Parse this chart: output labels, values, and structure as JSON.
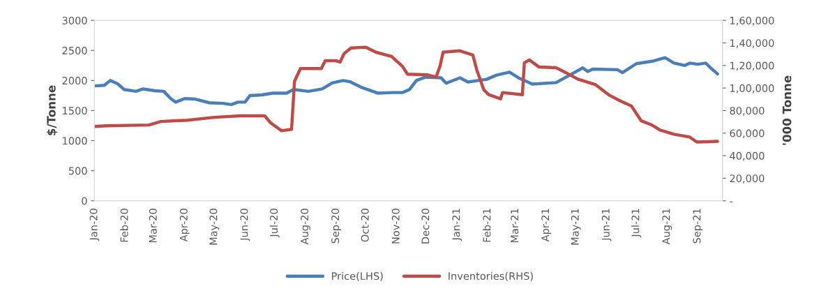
{
  "chart_data": {
    "type": "line",
    "ylabel": "$/Tonne",
    "y2label": "'000 Tonne",
    "legend": "bottom",
    "grid": false,
    "line_style": "solid",
    "marker": "none",
    "xlim": [
      "2020-01-01",
      "2021-09-26"
    ],
    "xticks": [
      {
        "value": "2020-01-01",
        "label": "Jan-20"
      },
      {
        "value": "2020-02-01",
        "label": "Feb-20"
      },
      {
        "value": "2020-03-01",
        "label": "Mar-20"
      },
      {
        "value": "2020-04-01",
        "label": "Apr-20"
      },
      {
        "value": "2020-05-01",
        "label": "May-20"
      },
      {
        "value": "2020-06-01",
        "label": "Jun-20"
      },
      {
        "value": "2020-07-01",
        "label": "Jul-20"
      },
      {
        "value": "2020-08-01",
        "label": "Aug-20"
      },
      {
        "value": "2020-09-01",
        "label": "Sep-20"
      },
      {
        "value": "2020-10-01",
        "label": "Oct-20"
      },
      {
        "value": "2020-11-01",
        "label": "Nov-20"
      },
      {
        "value": "2020-12-01",
        "label": "Dec-20"
      },
      {
        "value": "2021-01-01",
        "label": "Jan-21"
      },
      {
        "value": "2021-02-01",
        "label": "Feb-21"
      },
      {
        "value": "2021-03-01",
        "label": "Mar-21"
      },
      {
        "value": "2021-04-01",
        "label": "Apr-21"
      },
      {
        "value": "2021-05-01",
        "label": "May-21"
      },
      {
        "value": "2021-06-01",
        "label": "Jun-21"
      },
      {
        "value": "2021-07-01",
        "label": "Jul-21"
      },
      {
        "value": "2021-08-01",
        "label": "Aug-21"
      },
      {
        "value": "2021-09-01",
        "label": "Sep-21"
      }
    ],
    "ylim": [
      0,
      3000
    ],
    "yticks": [
      0,
      500,
      1000,
      1500,
      2000,
      2500,
      3000
    ],
    "y2lim": [
      0,
      160000
    ],
    "y2ticks": [
      {
        "value": 0,
        "label": "-"
      },
      {
        "value": 20000,
        "label": "20,000"
      },
      {
        "value": 40000,
        "label": "40,000"
      },
      {
        "value": 60000,
        "label": "60,000"
      },
      {
        "value": 80000,
        "label": "80,000"
      },
      {
        "value": 100000,
        "label": "1,00,000"
      },
      {
        "value": 120000,
        "label": "1,20,000"
      },
      {
        "value": 140000,
        "label": "1,40,000"
      },
      {
        "value": 160000,
        "label": "1,60,000"
      }
    ],
    "series": [
      {
        "name": "Price(LHS)",
        "color": "#4a7ebb",
        "x": [
          "2020-01-01",
          "2020-01-11",
          "2020-01-17",
          "2020-01-24",
          "2020-01-31",
          "2020-02-12",
          "2020-02-19",
          "2020-03-02",
          "2020-03-11",
          "2020-03-18",
          "2020-03-23",
          "2020-04-01",
          "2020-04-12",
          "2020-04-26",
          "2020-05-10",
          "2020-05-18",
          "2020-05-25",
          "2020-06-01",
          "2020-06-06",
          "2020-06-18",
          "2020-06-29",
          "2020-07-13",
          "2020-07-20",
          "2020-08-04",
          "2020-08-18",
          "2020-08-28",
          "2020-09-08",
          "2020-09-15",
          "2020-09-26",
          "2020-10-13",
          "2020-10-28",
          "2020-11-07",
          "2020-11-14",
          "2020-11-21",
          "2020-11-30",
          "2020-12-16",
          "2020-12-21",
          "2021-01-04",
          "2021-01-12",
          "2021-01-31",
          "2021-02-10",
          "2021-02-23",
          "2021-03-04",
          "2021-03-18",
          "2021-04-11",
          "2021-04-21",
          "2021-05-08",
          "2021-05-13",
          "2021-05-18",
          "2021-06-12",
          "2021-06-17",
          "2021-07-01",
          "2021-07-17",
          "2021-07-30",
          "2021-08-08",
          "2021-08-19",
          "2021-08-24",
          "2021-09-01",
          "2021-09-09",
          "2021-09-14",
          "2021-09-21"
        ],
        "values": [
          1910,
          1920,
          2000,
          1950,
          1850,
          1820,
          1860,
          1830,
          1820,
          1700,
          1640,
          1700,
          1690,
          1630,
          1620,
          1600,
          1640,
          1640,
          1750,
          1760,
          1790,
          1790,
          1850,
          1820,
          1860,
          1960,
          2000,
          1980,
          1890,
          1790,
          1800,
          1800,
          1850,
          2000,
          2055,
          2045,
          1955,
          2045,
          1975,
          2020,
          2090,
          2140,
          2045,
          1940,
          1965,
          2055,
          2210,
          2150,
          2190,
          2180,
          2130,
          2280,
          2320,
          2380,
          2290,
          2250,
          2290,
          2270,
          2290,
          2210,
          2110
        ]
      },
      {
        "name": "Inventories(RHS)",
        "color": "#be4b48",
        "axis": "y2",
        "x": [
          "2020-01-01",
          "2020-01-13",
          "2020-02-25",
          "2020-03-08",
          "2020-04-04",
          "2020-05-01",
          "2020-05-27",
          "2020-06-21",
          "2020-06-27",
          "2020-07-08",
          "2020-07-18",
          "2020-07-21",
          "2020-07-27",
          "2020-08-17",
          "2020-08-21",
          "2020-09-01",
          "2020-09-05",
          "2020-09-09",
          "2020-09-16",
          "2020-10-01",
          "2020-10-11",
          "2020-10-27",
          "2020-11-07",
          "2020-11-12",
          "2020-12-02",
          "2020-12-11",
          "2020-12-15",
          "2020-12-18",
          "2021-01-04",
          "2021-01-17",
          "2021-01-21",
          "2021-01-28",
          "2021-02-02",
          "2021-02-14",
          "2021-02-16",
          "2021-03-08",
          "2021-03-10",
          "2021-03-15",
          "2021-03-25",
          "2021-04-11",
          "2021-04-21",
          "2021-05-03",
          "2021-05-21",
          "2021-06-04",
          "2021-06-15",
          "2021-06-26",
          "2021-07-06",
          "2021-07-17",
          "2021-07-25",
          "2021-08-08",
          "2021-08-24",
          "2021-08-31",
          "2021-09-21"
        ],
        "values": [
          65900,
          66500,
          67200,
          70300,
          71500,
          74000,
          75300,
          75300,
          69000,
          62100,
          63400,
          106000,
          117300,
          117300,
          124200,
          124200,
          123000,
          130500,
          135500,
          136200,
          131800,
          128000,
          119200,
          112300,
          111700,
          109800,
          119900,
          131800,
          133000,
          129300,
          116100,
          98500,
          94100,
          90400,
          96000,
          94100,
          122400,
          124900,
          118600,
          118000,
          113600,
          107900,
          102900,
          93500,
          88500,
          84100,
          70900,
          67100,
          62700,
          59000,
          56500,
          52100,
          52700
        ]
      }
    ]
  }
}
